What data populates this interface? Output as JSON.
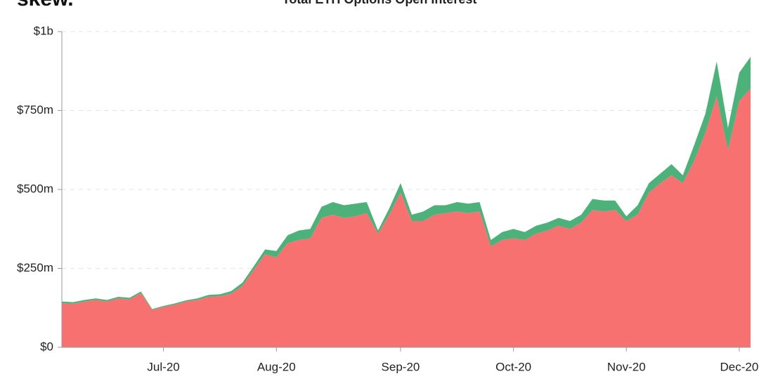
{
  "brand": "skew.",
  "chart_data": {
    "type": "stacked-area",
    "title": "Total ETH Options Open Interest",
    "categories": [
      null,
      null,
      null,
      null,
      null,
      null,
      null,
      null,
      null,
      "Jul-20",
      null,
      null,
      null,
      null,
      null,
      null,
      null,
      null,
      null,
      "Aug-20",
      null,
      null,
      null,
      null,
      null,
      null,
      null,
      null,
      null,
      null,
      "Sep-20",
      null,
      null,
      null,
      null,
      null,
      null,
      null,
      null,
      null,
      "Oct-20",
      null,
      null,
      null,
      null,
      null,
      null,
      null,
      null,
      null,
      "Nov-20",
      null,
      null,
      null,
      null,
      null,
      null,
      null,
      null,
      null,
      "Dec-20",
      null
    ],
    "series": [
      {
        "color": "#f87171",
        "values": [
          140,
          138,
          145,
          150,
          145,
          155,
          152,
          172,
          118,
          128,
          135,
          145,
          150,
          160,
          162,
          170,
          195,
          245,
          295,
          285,
          330,
          340,
          345,
          410,
          420,
          410,
          415,
          425,
          360,
          420,
          490,
          400,
          400,
          420,
          425,
          430,
          425,
          430,
          320,
          340,
          345,
          340,
          360,
          370,
          385,
          375,
          395,
          435,
          430,
          435,
          400,
          420,
          490,
          520,
          545,
          520,
          590,
          680,
          795,
          625,
          780,
          820
        ]
      },
      {
        "color": "#4cb27a",
        "values": [
          5,
          5,
          5,
          5,
          5,
          5,
          5,
          5,
          3,
          3,
          4,
          4,
          5,
          6,
          6,
          8,
          10,
          12,
          15,
          20,
          25,
          30,
          30,
          35,
          40,
          40,
          40,
          35,
          10,
          20,
          30,
          20,
          30,
          30,
          25,
          30,
          30,
          30,
          20,
          25,
          30,
          25,
          25,
          25,
          25,
          25,
          25,
          35,
          35,
          30,
          15,
          30,
          30,
          30,
          35,
          25,
          50,
          60,
          110,
          70,
          90,
          100
        ]
      }
    ],
    "ylim": [
      0,
      1000
    ],
    "yticks": [
      {
        "value": 0,
        "label": "$0"
      },
      {
        "value": 250,
        "label": "$250m"
      },
      {
        "value": 500,
        "label": "$500m"
      },
      {
        "value": 750,
        "label": "$750m"
      },
      {
        "value": 1000,
        "label": "$1b"
      }
    ],
    "grid": true
  }
}
